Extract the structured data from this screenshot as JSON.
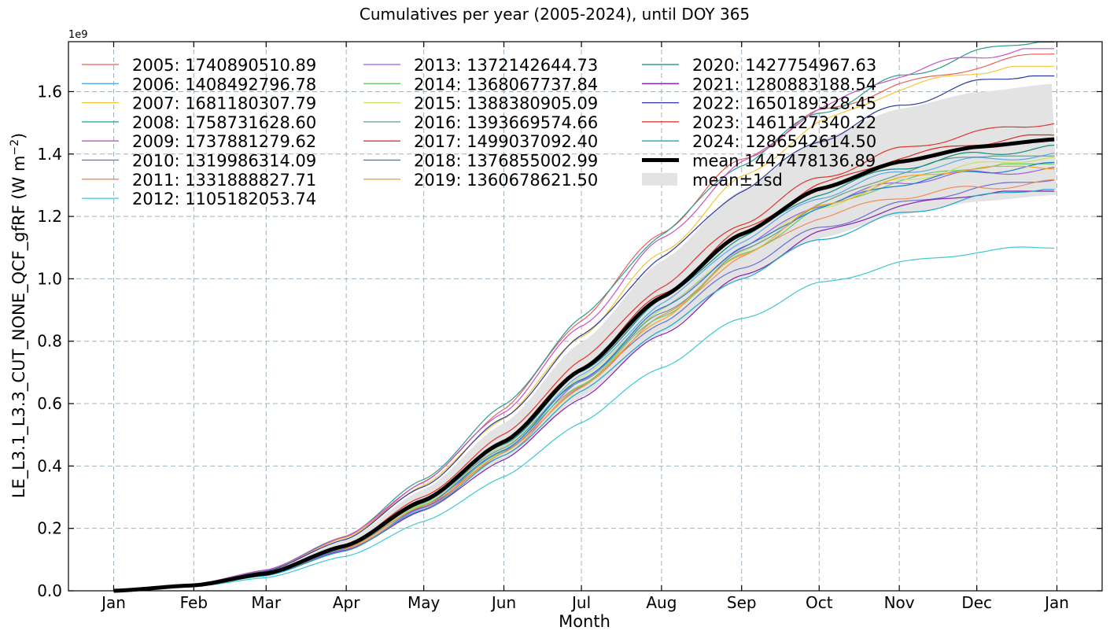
{
  "chart_data": {
    "type": "line",
    "title": "Cumulatives per year (2005-2024), until DOY 365",
    "xlabel": "Month",
    "ylabel": "LE_L3.1_L3.3_CUT_NONE_QCF_gfRF  (W m",
    "ylabel_unit_exponent": "−2",
    "ylabel_close": ")",
    "y_offset_label": "1e9",
    "x_ticks": [
      "Jan",
      "Feb",
      "Mar",
      "Apr",
      "May",
      "Jun",
      "Jul",
      "Aug",
      "Sep",
      "Oct",
      "Nov",
      "Dec",
      "Jan"
    ],
    "x_tick_days": [
      0,
      31,
      59,
      90,
      120,
      151,
      181,
      212,
      243,
      273,
      304,
      334,
      365
    ],
    "y_ticks": [
      "0.0",
      "0.2",
      "0.4",
      "0.6",
      "0.8",
      "1.0",
      "1.2",
      "1.4",
      "1.6"
    ],
    "y_tick_values": [
      0,
      0.2,
      0.4,
      0.6,
      0.8,
      1.0,
      1.2,
      1.4,
      1.6
    ],
    "xlim": [
      -17.5,
      382.5
    ],
    "ylim": [
      0,
      1.76
    ],
    "y_unit": "1e9",
    "grid": true,
    "legend_position": "top-left",
    "series": [
      {
        "name": "2005",
        "label": "2005: 1740890510.89",
        "total": 1.7409,
        "color": "#e8605a"
      },
      {
        "name": "2006",
        "label": "2006: 1408492796.78",
        "total": 1.4085,
        "color": "#5aaae8"
      },
      {
        "name": "2007",
        "label": "2007: 1681180307.79",
        "total": 1.6812,
        "color": "#f2c73a"
      },
      {
        "name": "2008",
        "label": "2008: 1758731628.60",
        "total": 1.7587,
        "color": "#2a9d8f"
      },
      {
        "name": "2009",
        "label": "2009: 1737881279.62",
        "total": 1.7379,
        "color": "#c454c4"
      },
      {
        "name": "2010",
        "label": "2010: 1319986314.09",
        "total": 1.32,
        "color": "#6c6cd8"
      },
      {
        "name": "2011",
        "label": "2011: 1331888827.71",
        "total": 1.3319,
        "color": "#f08a5a"
      },
      {
        "name": "2012",
        "label": "2012: 1105182053.74",
        "total": 1.1052,
        "color": "#3ec8d0"
      },
      {
        "name": "2013",
        "label": "2013: 1372142644.73",
        "total": 1.3721,
        "color": "#9a5ee0"
      },
      {
        "name": "2014",
        "label": "2014: 1368067737.84",
        "total": 1.3681,
        "color": "#6cc86c"
      },
      {
        "name": "2015",
        "label": "2015: 1388380905.09",
        "total": 1.3884,
        "color": "#c8e06c"
      },
      {
        "name": "2016",
        "label": "2016: 1393669574.66",
        "total": 1.3937,
        "color": "#6a9a8a"
      },
      {
        "name": "2017",
        "label": "2017: 1499037092.40",
        "total": 1.499,
        "color": "#e0342e"
      },
      {
        "name": "2018",
        "label": "2018: 1376855002.99",
        "total": 1.3769,
        "color": "#1e7ad8"
      },
      {
        "name": "2019",
        "label": "2019: 1360678621.50",
        "total": 1.3607,
        "color": "#f5a623"
      },
      {
        "name": "2020",
        "label": "2020: 1427754967.63",
        "total": 1.4278,
        "color": "#0e8a80"
      },
      {
        "name": "2021",
        "label": "2021: 1280883188.54",
        "total": 1.2809,
        "color": "#8a1eb4"
      },
      {
        "name": "2022",
        "label": "2022: 1650189328.45",
        "total": 1.6502,
        "color": "#2a3aa0"
      },
      {
        "name": "2023",
        "label": "2023: 1461127340.22",
        "total": 1.4611,
        "color": "#d8281e"
      },
      {
        "name": "2024",
        "label": "2024: 1286542614.50",
        "total": 1.2865,
        "color": "#18a6c8"
      }
    ],
    "mean": {
      "label": "mean 1447478136.89",
      "total": 1.4475,
      "color": "#000000"
    },
    "band": {
      "label": "mean±1sd",
      "upper_total": 1.626,
      "color": "#e3e3e3"
    }
  }
}
